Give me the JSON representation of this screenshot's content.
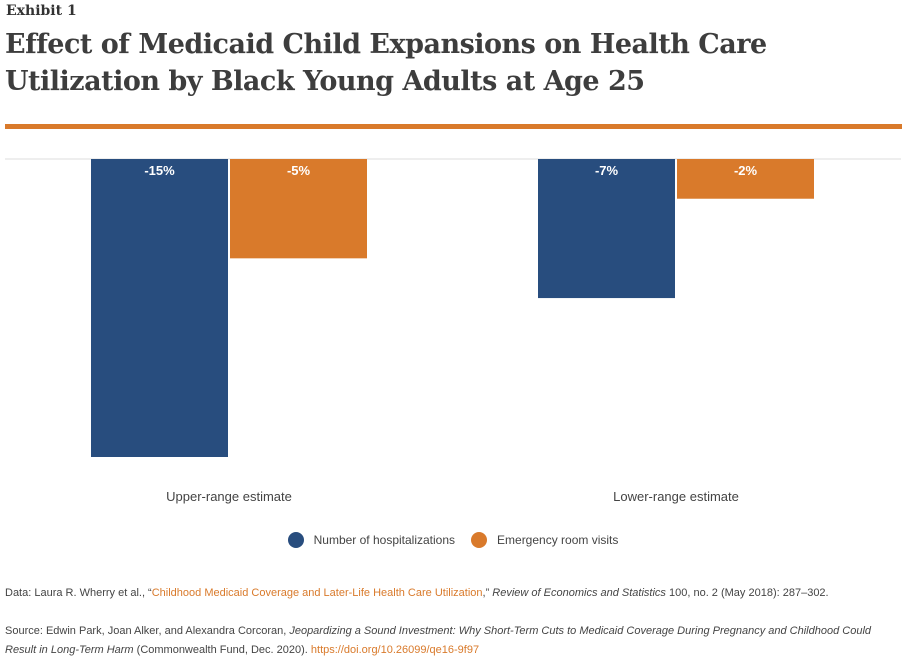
{
  "header": {
    "exhibit_label": "Exhibit 1",
    "title": "Effect of Medicaid Child Expansions on Health Care Utilization by Black Young Adults at Age 25"
  },
  "colors": {
    "hospitalizations": "#284d7e",
    "er_visits": "#d97a2b",
    "rule": "#d97a2b"
  },
  "chart_data": {
    "type": "bar",
    "categories": [
      "Upper-range estimate",
      "Lower-range estimate"
    ],
    "series": [
      {
        "name": "Number of hospitalizations",
        "values": [
          -15,
          -7
        ],
        "labels": [
          "-15%",
          "-7%"
        ],
        "color": "#284d7e"
      },
      {
        "name": "Emergency room visits",
        "values": [
          -5,
          -2
        ],
        "labels": [
          "-5%",
          "-2%"
        ],
        "color": "#d97a2b"
      }
    ],
    "ylim": [
      -15,
      0
    ],
    "legend_position": "bottom"
  },
  "legend": {
    "items": [
      {
        "label": "Number of hospitalizations",
        "icon": "circle"
      },
      {
        "label": "Emergency room visits",
        "icon": "circle"
      }
    ]
  },
  "notes": {
    "data_prefix": "Data: Laura R. Wherry et al., “",
    "data_link": "Childhood Medicaid Coverage and Later-Life Health Care Utilization",
    "data_mid": ",” ",
    "data_journal": "Review of Economics and Statistics",
    "data_suffix": " 100, no. 2 (May 2018): 287–302.",
    "source_prefix": "Source: Edwin Park, Joan Alker, and Alexandra Corcoran, ",
    "source_title": "Jeopardizing a Sound Investment: Why Short-Term Cuts to Medicaid Coverage During Pregnancy and Childhood Could Result in Long-Term Harm",
    "source_mid": " (Commonwealth Fund, Dec. 2020). ",
    "source_link": "https://doi.org/10.26099/qe16-9f97"
  }
}
